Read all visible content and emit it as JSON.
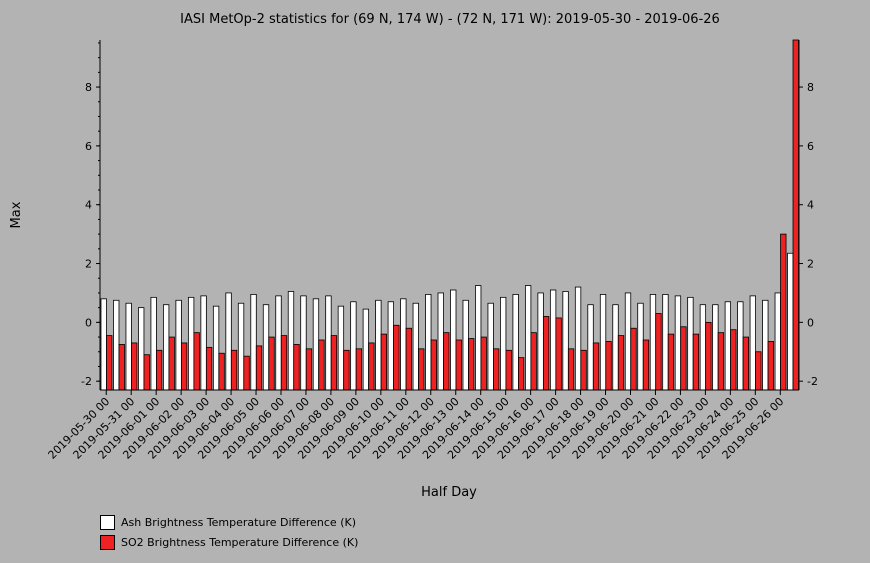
{
  "chart_data": {
    "type": "bar",
    "title": "IASI MetOp-2 statistics for (69 N, 174 W) - (72 N, 171 W): 2019-05-30 - 2019-06-26",
    "xlabel": "Half Day",
    "ylabel": "Max",
    "ylim": [
      -2.3,
      9.6
    ],
    "yticks": [
      -2,
      0,
      2,
      4,
      6,
      8
    ],
    "xtick_labels": [
      "2019-05-30 00",
      "2019-05-31 00",
      "2019-06-01 00",
      "2019-06-02 00",
      "2019-06-03 00",
      "2019-06-04 00",
      "2019-06-05 00",
      "2019-06-06 00",
      "2019-06-07 00",
      "2019-06-08 00",
      "2019-06-09 00",
      "2019-06-10 00",
      "2019-06-11 00",
      "2019-06-12 00",
      "2019-06-13 00",
      "2019-06-14 00",
      "2019-06-15 00",
      "2019-06-16 00",
      "2019-06-17 00",
      "2019-06-18 00",
      "2019-06-19 00",
      "2019-06-20 00",
      "2019-06-21 00",
      "2019-06-22 00",
      "2019-06-23 00",
      "2019-06-24 00",
      "2019-06-25 00",
      "2019-06-26 00"
    ],
    "series": [
      {
        "name": "Ash Brightness Temperature Difference (K)",
        "color": "#ffffff",
        "values": [
          0.8,
          0.75,
          0.65,
          0.5,
          0.85,
          0.6,
          0.75,
          0.85,
          0.9,
          0.55,
          1.0,
          0.65,
          0.95,
          0.6,
          0.9,
          1.05,
          0.9,
          0.8,
          0.9,
          0.55,
          0.7,
          0.45,
          0.75,
          0.7,
          0.8,
          0.65,
          0.95,
          1.0,
          1.1,
          0.75,
          1.25,
          0.65,
          0.85,
          0.95,
          1.25,
          1.0,
          1.1,
          1.05,
          1.2,
          0.6,
          0.95,
          0.6,
          1.0,
          0.65,
          0.95,
          0.95,
          0.9,
          0.85,
          0.6,
          0.6,
          0.7,
          0.7,
          0.9,
          0.75,
          1.0,
          2.35
        ]
      },
      {
        "name": "SO2 Brightness Temperature Difference (K)",
        "color": "#ee2222",
        "values": [
          -0.45,
          -0.75,
          -0.7,
          -1.1,
          -0.95,
          -0.5,
          -0.7,
          -0.35,
          -0.85,
          -1.05,
          -0.95,
          -1.15,
          -0.8,
          -0.5,
          -0.45,
          -0.75,
          -0.9,
          -0.6,
          -0.45,
          -0.95,
          -0.9,
          -0.7,
          -0.4,
          -0.1,
          -0.2,
          -0.9,
          -0.6,
          -0.35,
          -0.6,
          -0.55,
          -0.5,
          -0.9,
          -0.95,
          -1.2,
          -0.35,
          0.2,
          0.15,
          -0.9,
          -0.95,
          -0.7,
          -0.65,
          -0.45,
          -0.2,
          -0.6,
          0.3,
          -0.4,
          -0.15,
          -0.4,
          0.0,
          -0.35,
          -0.25,
          -0.5,
          -1.0,
          -0.65,
          3.0,
          9.6
        ]
      }
    ]
  }
}
